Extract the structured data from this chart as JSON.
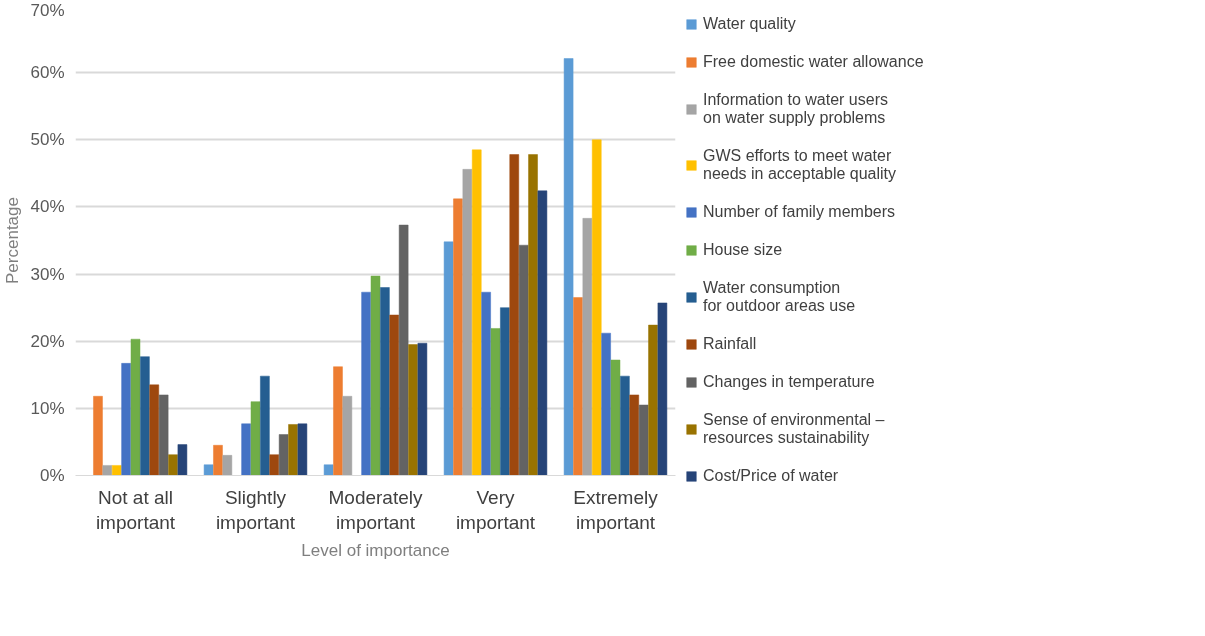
{
  "chart_data": {
    "type": "bar",
    "xlabel": "Level of importance",
    "ylabel": "Percentage",
    "categories": [
      "Not at all important",
      "Slightly important",
      "Moderately important",
      "Very important",
      "Extremely important"
    ],
    "ylim": [
      0,
      70
    ],
    "yticks": [
      {
        "value": 0,
        "label": "0%"
      },
      {
        "value": 10,
        "label": "10%"
      },
      {
        "value": 20,
        "label": "20%"
      },
      {
        "value": 30,
        "label": "30%"
      },
      {
        "value": 40,
        "label": "40%"
      },
      {
        "value": 50,
        "label": "50%"
      },
      {
        "value": 60,
        "label": "60%"
      },
      {
        "value": 70,
        "label": "70%"
      }
    ],
    "grid": "y",
    "legend": "right",
    "series": [
      {
        "name": "Water quality",
        "color": "#5b9bd5",
        "values": [
          0,
          1.6,
          1.6,
          34.8,
          62.1
        ]
      },
      {
        "name": "Free domestic water allowance",
        "color": "#ed7d31",
        "values": [
          11.8,
          4.5,
          16.2,
          41.2,
          26.5
        ]
      },
      {
        "name": "Information to water users on water supply problems",
        "color": "#a5a5a5",
        "values": [
          1.5,
          3.0,
          11.8,
          45.6,
          38.3
        ]
      },
      {
        "name": "GWS efforts to meet water needs in acceptable quality",
        "color": "#ffc000",
        "values": [
          1.5,
          0,
          0,
          48.5,
          50.0
        ]
      },
      {
        "name": "Number of family members",
        "color": "#4472c4",
        "values": [
          16.7,
          7.7,
          27.3,
          27.3,
          21.2
        ]
      },
      {
        "name": "House size",
        "color": "#70ad47",
        "values": [
          20.3,
          11.0,
          29.7,
          21.9,
          17.2
        ]
      },
      {
        "name": "Water consumption for outdoor areas use",
        "color": "#255e91",
        "values": [
          17.7,
          14.8,
          28.0,
          25.0,
          14.8
        ]
      },
      {
        "name": "Rainfall",
        "color": "#9e480e",
        "values": [
          13.5,
          3.1,
          23.9,
          47.8,
          12.0
        ]
      },
      {
        "name": "Changes in temperature",
        "color": "#636363",
        "values": [
          12.0,
          6.1,
          37.3,
          34.3,
          10.5
        ]
      },
      {
        "name": "Sense of environmental – resources sustainability",
        "color": "#997300",
        "values": [
          3.1,
          7.6,
          19.5,
          47.8,
          22.4
        ]
      },
      {
        "name": "Cost/Price of water",
        "color": "#264478",
        "values": [
          4.6,
          7.7,
          19.7,
          42.4,
          25.7
        ]
      }
    ]
  }
}
